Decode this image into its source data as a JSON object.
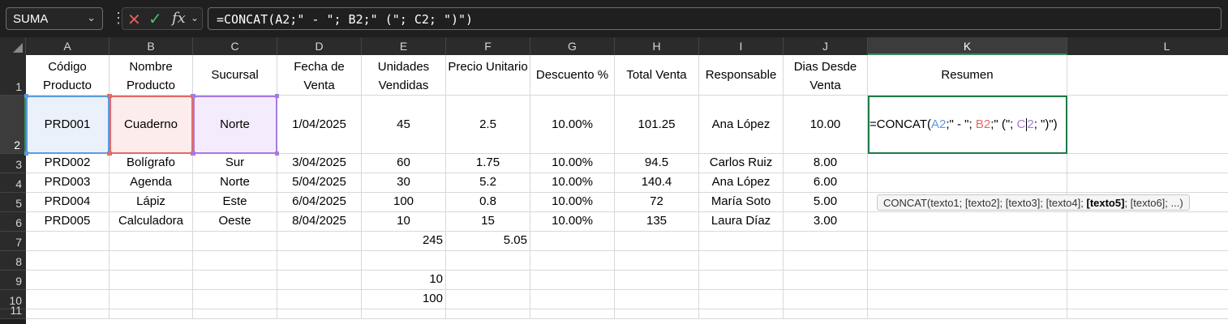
{
  "name_box": {
    "value": "SUMA"
  },
  "formula_bar": {
    "cancel_icon": "x-icon",
    "enter_icon": "check-icon",
    "function_label": "fx",
    "value": "=CONCAT(A2;\" - \"; B2;\" (\"; C2; \")\")"
  },
  "columns": [
    "A",
    "B",
    "C",
    "D",
    "E",
    "F",
    "G",
    "H",
    "I",
    "J",
    "K",
    "L"
  ],
  "rows": [
    "1",
    "2",
    "3",
    "4",
    "5",
    "6",
    "7",
    "8",
    "9",
    "10",
    "11"
  ],
  "headers": {
    "A": "Código Producto",
    "B": "Nombre Producto",
    "C": "Sucursal",
    "D": "Fecha de Venta",
    "E": "Unidades Vendidas",
    "F": "Precio Unitario",
    "G": "Descuento %",
    "H": "Total Venta",
    "I": "Responsable",
    "J": "Dias Desde Venta",
    "K": "Resumen"
  },
  "data_rows": [
    [
      "PRD001",
      "Cuaderno",
      "Norte",
      "1/04/2025",
      "45",
      "2.5",
      "10.00%",
      "101.25",
      "Ana López",
      "10.00"
    ],
    [
      "PRD002",
      "Bolígrafo",
      "Sur",
      "3/04/2025",
      "60",
      "1.75",
      "10.00%",
      "94.5",
      "Carlos Ruiz",
      "8.00"
    ],
    [
      "PRD003",
      "Agenda",
      "Norte",
      "5/04/2025",
      "30",
      "5.2",
      "10.00%",
      "140.4",
      "Ana López",
      "6.00"
    ],
    [
      "PRD004",
      "Lápiz",
      "Este",
      "6/04/2025",
      "100",
      "0.8",
      "10.00%",
      "72",
      "María Soto",
      "5.00"
    ],
    [
      "PRD005",
      "Calculadora",
      "Oeste",
      "8/04/2025",
      "10",
      "15",
      "10.00%",
      "135",
      "Laura Díaz",
      "3.00"
    ]
  ],
  "extra": {
    "E7": "245",
    "F7": "5.05",
    "E9": "10",
    "E10": "100"
  },
  "active_cell": {
    "ref": "K2",
    "parts": [
      "=CONCAT(",
      "A2",
      ";\" - \"; ",
      "B2",
      ";\" (\"; ",
      "C",
      "2",
      "; \")\")"
    ]
  },
  "tooltip": {
    "before": "CONCAT(texto1; [texto2]; [texto3]; [texto4]; ",
    "bold": "[texto5]",
    "after": "; [texto6]; ...)"
  },
  "colors": {
    "ref_a2": "#5b9be0",
    "ref_b2": "#e06a6a",
    "ref_c2": "#a779e0",
    "active_border": "#1e7a45"
  }
}
